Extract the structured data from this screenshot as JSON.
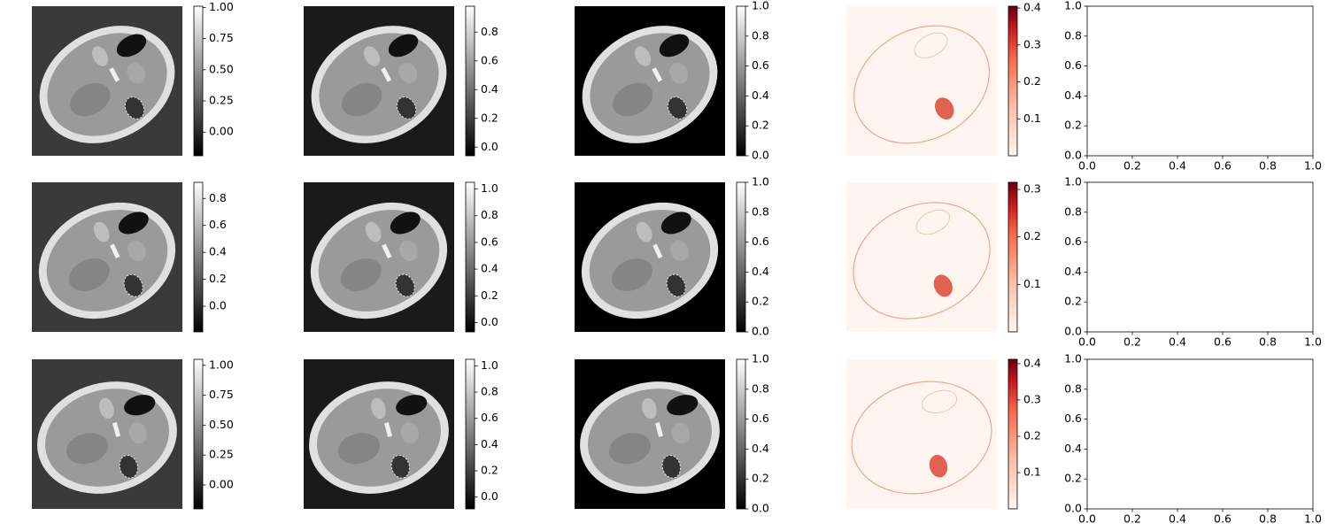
{
  "chart_data": [
    {
      "type": "image",
      "cmap": "gray",
      "clim": [
        -0.19,
        1.01
      ],
      "ticks": [
        {
          "value": 0,
          "label": "0.00"
        },
        0.25,
        {
          "value": 0.5,
          "label": "0.50"
        },
        0.75,
        {
          "value": 1,
          "label": "1.00"
        }
      ]
    },
    {
      "type": "image",
      "cmap": "gray",
      "clim": [
        -0.06,
        0.98
      ],
      "ticks": [
        {
          "value": 0,
          "label": "0.0"
        },
        0.2,
        0.4,
        0.6,
        0.8
      ]
    },
    {
      "type": "image",
      "cmap": "gray",
      "clim": [
        0,
        1
      ],
      "ticks": [
        {
          "value": 0,
          "label": "0.0"
        },
        0.2,
        0.4,
        0.6,
        0.8,
        {
          "value": 1,
          "label": "1.0"
        }
      ]
    },
    {
      "type": "image",
      "cmap": "Reds",
      "clim": [
        0,
        0.405
      ],
      "ticks": [
        0.1,
        0.2,
        0.3,
        0.4
      ]
    },
    {
      "type": "empty",
      "xlim": [
        0,
        1
      ],
      "ylim": [
        0,
        1
      ],
      "xticks": [
        {
          "value": 0,
          "label": "0.0"
        },
        0.2,
        0.4,
        0.6,
        0.8,
        {
          "value": 1,
          "label": "1.0"
        }
      ],
      "yticks": [
        {
          "value": 0,
          "label": "0.0"
        },
        0.2,
        0.4,
        0.6,
        0.8,
        {
          "value": 1,
          "label": "1.0"
        }
      ]
    },
    {
      "type": "image",
      "cmap": "gray",
      "clim": [
        -0.19,
        0.92
      ],
      "ticks": [
        {
          "value": 0,
          "label": "0.0"
        },
        0.2,
        0.4,
        0.6,
        0.8
      ]
    },
    {
      "type": "image",
      "cmap": "gray",
      "clim": [
        -0.07,
        1.05
      ],
      "ticks": [
        {
          "value": 0,
          "label": "0.0"
        },
        0.2,
        0.4,
        0.6,
        0.8,
        {
          "value": 1,
          "label": "1.0"
        }
      ]
    },
    {
      "type": "image",
      "cmap": "gray",
      "clim": [
        0,
        1
      ],
      "ticks": [
        {
          "value": 0,
          "label": "0.0"
        },
        0.2,
        0.4,
        0.6,
        0.8,
        {
          "value": 1,
          "label": "1.0"
        }
      ]
    },
    {
      "type": "image",
      "cmap": "Reds",
      "clim": [
        0,
        0.315
      ],
      "ticks": [
        0.1,
        0.2,
        0.3
      ]
    },
    {
      "type": "empty",
      "xlim": [
        0,
        1
      ],
      "ylim": [
        0,
        1
      ],
      "xticks": [
        {
          "value": 0,
          "label": "0.0"
        },
        0.2,
        0.4,
        0.6,
        0.8,
        {
          "value": 1,
          "label": "1.0"
        }
      ],
      "yticks": [
        {
          "value": 0,
          "label": "0.0"
        },
        0.2,
        0.4,
        0.6,
        0.8,
        {
          "value": 1,
          "label": "1.0"
        }
      ]
    },
    {
      "type": "image",
      "cmap": "gray",
      "clim": [
        -0.2,
        1.05
      ],
      "ticks": [
        {
          "value": 0,
          "label": "0.00"
        },
        0.25,
        {
          "value": 0.5,
          "label": "0.50"
        },
        0.75,
        {
          "value": 1,
          "label": "1.00"
        }
      ]
    },
    {
      "type": "image",
      "cmap": "gray",
      "clim": [
        -0.09,
        1.05
      ],
      "ticks": [
        {
          "value": 0,
          "label": "0.0"
        },
        0.2,
        0.4,
        0.6,
        0.8,
        {
          "value": 1,
          "label": "1.0"
        }
      ]
    },
    {
      "type": "image",
      "cmap": "gray",
      "clim": [
        0,
        1
      ],
      "ticks": [
        {
          "value": 0,
          "label": "0.0"
        },
        0.2,
        0.4,
        0.6,
        0.8,
        {
          "value": 1,
          "label": "1.0"
        }
      ]
    },
    {
      "type": "image",
      "cmap": "Reds",
      "clim": [
        0,
        0.412
      ],
      "ticks": [
        0.1,
        0.2,
        0.3,
        0.4
      ]
    },
    {
      "type": "empty",
      "xlim": [
        0,
        1
      ],
      "ylim": [
        0,
        1
      ],
      "xticks": [
        {
          "value": 0,
          "label": "0.0"
        },
        0.2,
        0.4,
        0.6,
        0.8,
        {
          "value": 1,
          "label": "1.0"
        }
      ],
      "yticks": [
        {
          "value": 0,
          "label": "0.0"
        },
        0.2,
        0.4,
        0.6,
        0.8,
        {
          "value": 1,
          "label": "1.0"
        }
      ]
    }
  ]
}
